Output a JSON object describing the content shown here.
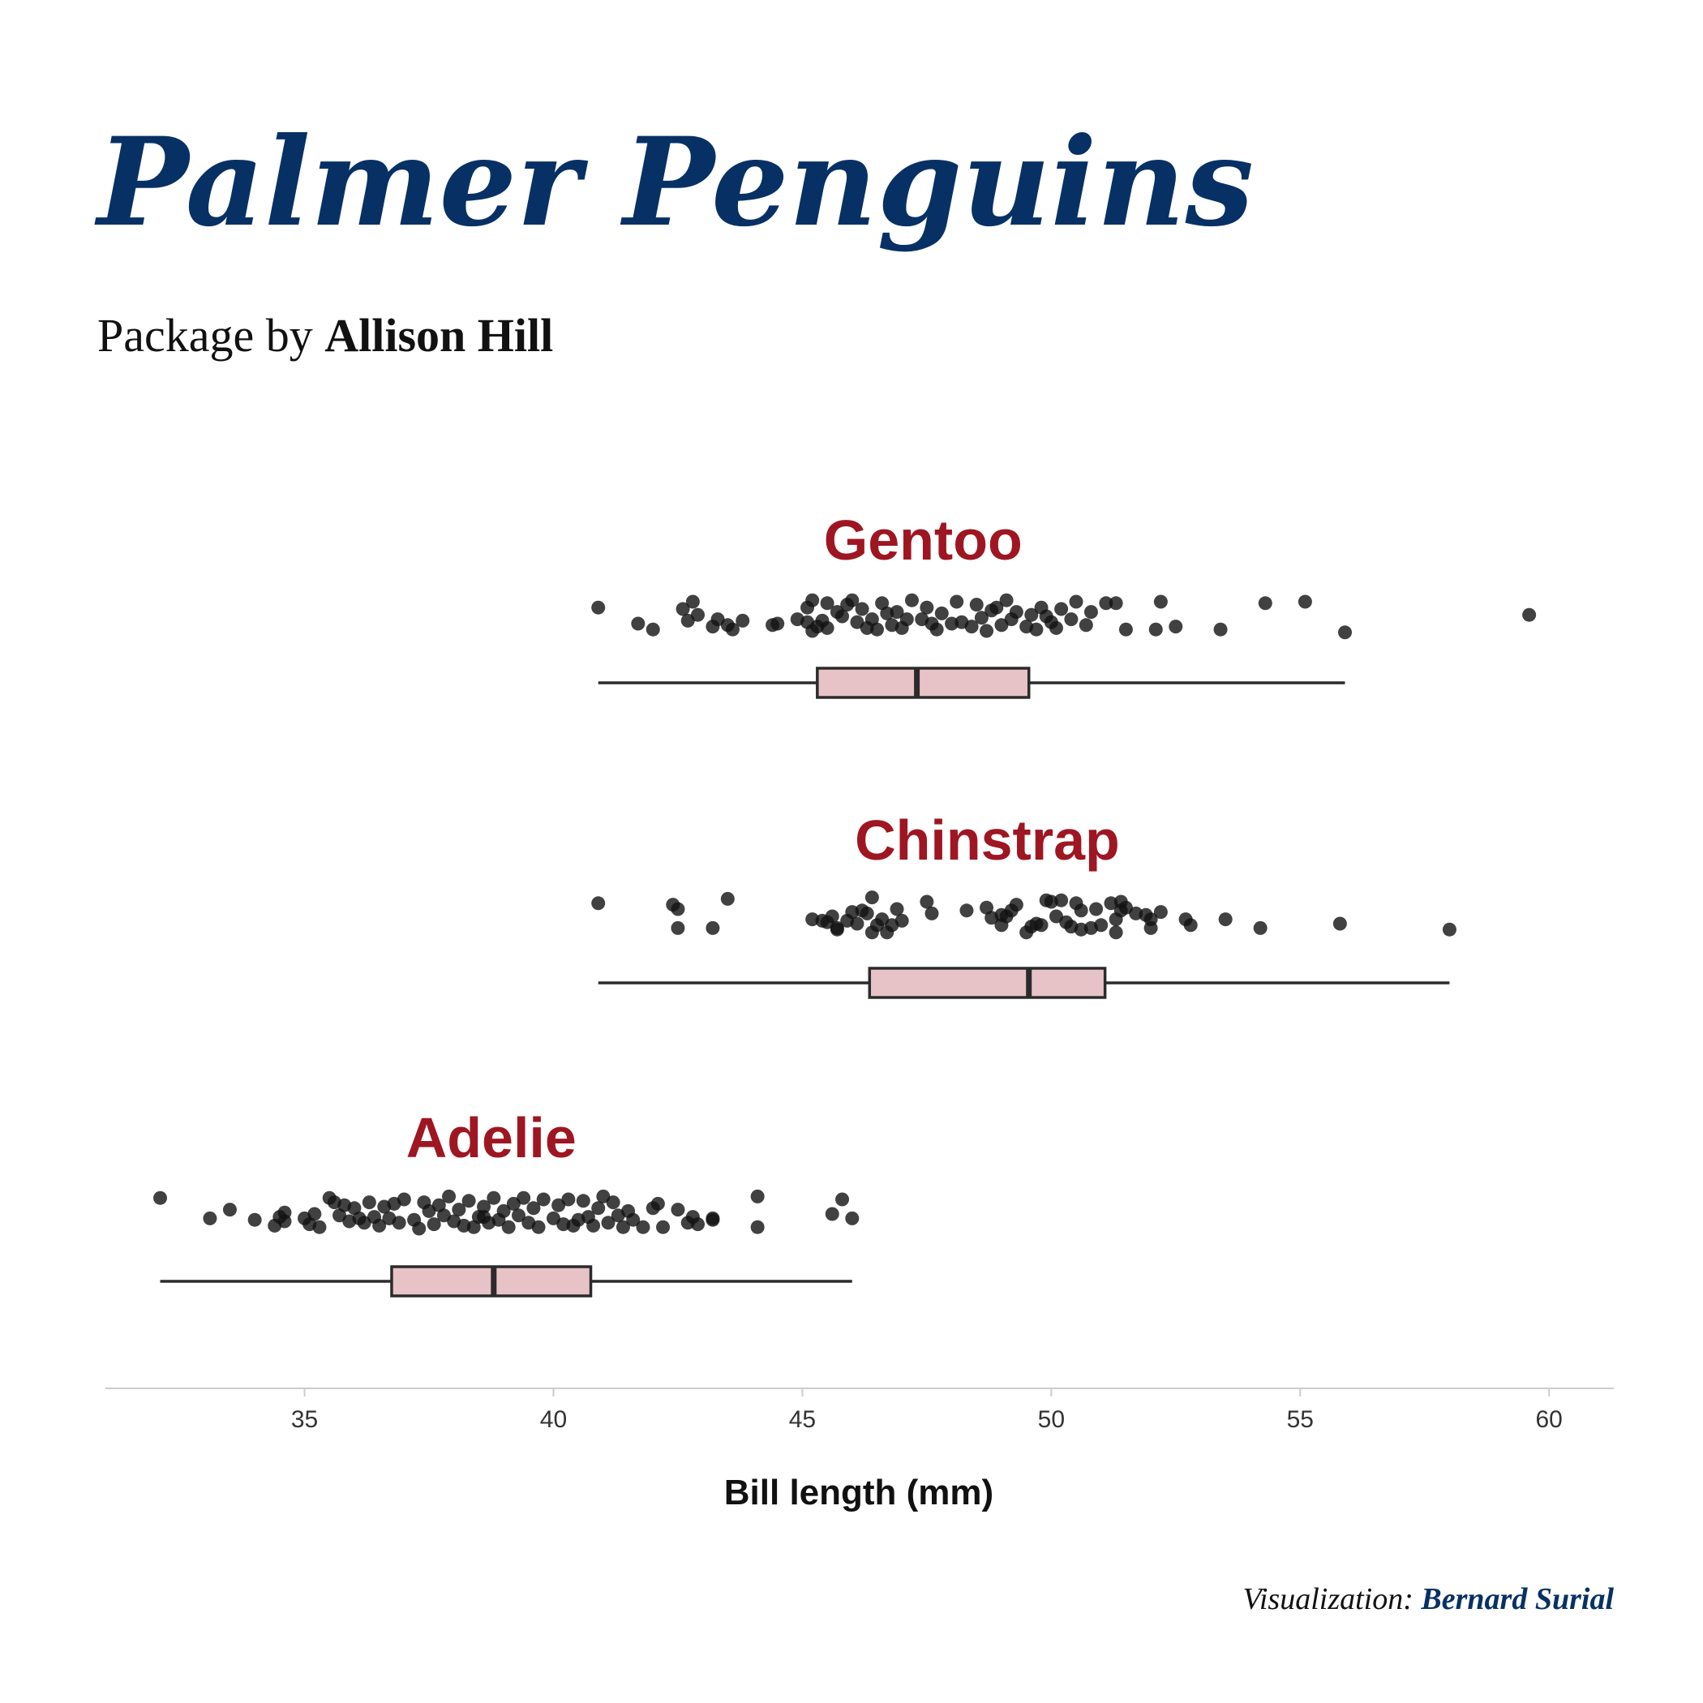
{
  "title": "Palmer Penguins",
  "subtitle": {
    "prefix": "Package by ",
    "author": "Allison Hill"
  },
  "caption": {
    "prefix": "Visualization: ",
    "credit": "Bernard Surial"
  },
  "colors": {
    "title": "#073164",
    "species_label": "#9e1622",
    "box_fill": "#e7c3c8",
    "box_stroke": "#2b2b2b",
    "points": "#111111",
    "axis_line": "#cccccc"
  },
  "chart_data": {
    "type": "boxplot",
    "title": "",
    "xlabel": "Bill length (mm)",
    "ylabel": "",
    "xlim": [
      31,
      61.3
    ],
    "xticks": [
      35,
      40,
      45,
      50,
      55,
      60
    ],
    "grid": false,
    "legend": "none",
    "series": [
      {
        "name": "Gentoo",
        "box": {
          "min": 40.9,
          "q1": 45.3,
          "median": 47.3,
          "q3": 49.55,
          "max": 55.9
        },
        "points": [
          [
            40.9,
            -0.6
          ],
          [
            41.7,
            0.5
          ],
          [
            42.0,
            0.9
          ],
          [
            42.6,
            -0.5
          ],
          [
            42.8,
            -1.0
          ],
          [
            42.7,
            0.3
          ],
          [
            43.2,
            0.7
          ],
          [
            43.3,
            0.2
          ],
          [
            43.5,
            0.6
          ],
          [
            43.6,
            0.9
          ],
          [
            42.9,
            -0.1
          ],
          [
            43.8,
            0.3
          ],
          [
            44.4,
            0.6
          ],
          [
            44.5,
            0.5
          ],
          [
            45.1,
            -0.6
          ],
          [
            45.1,
            0.4
          ],
          [
            45.2,
            1.0
          ],
          [
            45.2,
            -1.1
          ],
          [
            45.3,
            0.7
          ],
          [
            45.4,
            0.3
          ],
          [
            45.5,
            -0.9
          ],
          [
            45.5,
            0.8
          ],
          [
            45.7,
            -0.3
          ],
          [
            45.8,
            0.0
          ],
          [
            46.0,
            -1.1
          ],
          [
            46.1,
            0.4
          ],
          [
            46.2,
            -0.5
          ],
          [
            46.4,
            0.2
          ],
          [
            46.5,
            0.9
          ],
          [
            46.6,
            -0.9
          ],
          [
            46.8,
            0.6
          ],
          [
            46.9,
            -0.3
          ],
          [
            47.0,
            0.8
          ],
          [
            47.2,
            -1.1
          ],
          [
            47.4,
            0.2
          ],
          [
            47.5,
            -0.6
          ],
          [
            47.6,
            0.5
          ],
          [
            47.7,
            0.9
          ],
          [
            47.8,
            -0.2
          ],
          [
            48.1,
            -1.0
          ],
          [
            48.2,
            0.4
          ],
          [
            48.4,
            0.7
          ],
          [
            48.5,
            -0.8
          ],
          [
            48.6,
            0.1
          ],
          [
            48.7,
            1.0
          ],
          [
            48.8,
            -0.4
          ],
          [
            49.0,
            0.6
          ],
          [
            49.1,
            -1.1
          ],
          [
            49.2,
            0.2
          ],
          [
            49.3,
            -0.3
          ],
          [
            49.5,
            0.7
          ],
          [
            49.6,
            -0.1
          ],
          [
            49.7,
            0.9
          ],
          [
            49.8,
            -0.6
          ],
          [
            50.0,
            0.4
          ],
          [
            50.1,
            0.8
          ],
          [
            50.2,
            -0.5
          ],
          [
            50.4,
            0.2
          ],
          [
            50.5,
            -1.0
          ],
          [
            50.7,
            0.6
          ],
          [
            50.8,
            -0.3
          ],
          [
            51.1,
            -0.9
          ],
          [
            51.3,
            -0.9
          ],
          [
            51.5,
            0.9
          ],
          [
            52.1,
            0.9
          ],
          [
            52.2,
            -1.0
          ],
          [
            52.5,
            0.7
          ],
          [
            53.4,
            0.9
          ],
          [
            54.3,
            -0.9
          ],
          [
            55.1,
            -1.0
          ],
          [
            55.9,
            1.1
          ],
          [
            59.6,
            -0.1
          ],
          [
            46.3,
            0.8
          ],
          [
            48.0,
            0.5
          ],
          [
            44.9,
            0.2
          ],
          [
            45.9,
            -0.8
          ],
          [
            47.1,
            0.2
          ],
          [
            49.9,
            0.0
          ],
          [
            48.9,
            -0.6
          ],
          [
            46.7,
            -0.2
          ]
        ]
      },
      {
        "name": "Chinstrap",
        "box": {
          "min": 40.9,
          "q1": 46.35,
          "median": 49.55,
          "q3": 51.08,
          "max": 58.0
        },
        "points": [
          [
            40.9,
            -0.9
          ],
          [
            42.4,
            -0.8
          ],
          [
            42.5,
            0.8
          ],
          [
            42.5,
            -0.5
          ],
          [
            43.2,
            0.8
          ],
          [
            43.5,
            -1.2
          ],
          [
            45.2,
            0.2
          ],
          [
            45.4,
            0.3
          ],
          [
            45.5,
            0.4
          ],
          [
            45.6,
            0.0
          ],
          [
            45.7,
            0.9
          ],
          [
            45.7,
            0.8
          ],
          [
            45.9,
            0.3
          ],
          [
            46.0,
            -0.3
          ],
          [
            46.1,
            0.5
          ],
          [
            46.2,
            -0.4
          ],
          [
            46.4,
            1.1
          ],
          [
            46.4,
            -1.3
          ],
          [
            46.5,
            0.6
          ],
          [
            46.6,
            0.2
          ],
          [
            46.7,
            1.1
          ],
          [
            46.8,
            0.6
          ],
          [
            46.9,
            -0.5
          ],
          [
            47.5,
            -1.0
          ],
          [
            47.6,
            -0.2
          ],
          [
            48.3,
            -0.4
          ],
          [
            48.7,
            -0.6
          ],
          [
            49.0,
            0.6
          ],
          [
            49.1,
            0.0
          ],
          [
            49.3,
            -0.8
          ],
          [
            49.5,
            1.1
          ],
          [
            49.6,
            0.7
          ],
          [
            49.7,
            0.5
          ],
          [
            49.9,
            -1.1
          ],
          [
            50.2,
            -1.1
          ],
          [
            50.3,
            0.4
          ],
          [
            50.5,
            -0.9
          ],
          [
            50.6,
            0.9
          ],
          [
            50.8,
            0.8
          ],
          [
            50.9,
            -0.5
          ],
          [
            51.0,
            0.6
          ],
          [
            51.2,
            -0.9
          ],
          [
            51.3,
            1.1
          ],
          [
            51.4,
            -0.4
          ],
          [
            51.5,
            -0.6
          ],
          [
            52.0,
            0.8
          ],
          [
            52.2,
            -0.3
          ],
          [
            52.7,
            0.2
          ],
          [
            52.8,
            0.6
          ],
          [
            53.5,
            0.2
          ],
          [
            54.2,
            0.8
          ],
          [
            55.8,
            0.5
          ],
          [
            58.0,
            0.9
          ],
          [
            50.1,
            0.0
          ],
          [
            49.0,
            -0.1
          ],
          [
            51.3,
            0.2
          ],
          [
            50.4,
            0.7
          ],
          [
            52.0,
            0.2
          ],
          [
            47.0,
            0.3
          ],
          [
            51.7,
            -0.2
          ],
          [
            50.6,
            -0.4
          ],
          [
            49.8,
            0.6
          ],
          [
            51.4,
            -1.0
          ],
          [
            48.8,
            0.1
          ],
          [
            46.3,
            -0.2
          ],
          [
            50.0,
            -1.0
          ],
          [
            51.9,
            -0.1
          ],
          [
            49.2,
            -0.4
          ]
        ]
      },
      {
        "name": "Adelie",
        "box": {
          "min": 32.1,
          "q1": 36.75,
          "median": 38.8,
          "q3": 40.75,
          "max": 46.0
        },
        "points": [
          [
            32.1,
            -1.1
          ],
          [
            33.1,
            0.3
          ],
          [
            33.5,
            -0.3
          ],
          [
            34.0,
            0.4
          ],
          [
            34.4,
            0.8
          ],
          [
            34.5,
            0.2
          ],
          [
            34.6,
            0.5
          ],
          [
            34.6,
            -0.1
          ],
          [
            35.0,
            0.3
          ],
          [
            35.1,
            0.7
          ],
          [
            35.2,
            0.0
          ],
          [
            35.3,
            0.9
          ],
          [
            35.5,
            -1.1
          ],
          [
            35.6,
            -0.8
          ],
          [
            35.7,
            0.1
          ],
          [
            35.9,
            0.5
          ],
          [
            36.0,
            -0.4
          ],
          [
            36.2,
            0.6
          ],
          [
            36.3,
            -0.8
          ],
          [
            36.4,
            0.2
          ],
          [
            36.5,
            0.8
          ],
          [
            36.6,
            -0.5
          ],
          [
            36.7,
            0.3
          ],
          [
            36.8,
            -0.7
          ],
          [
            36.9,
            0.6
          ],
          [
            37.0,
            -1.0
          ],
          [
            37.2,
            0.4
          ],
          [
            37.3,
            1.0
          ],
          [
            37.5,
            -0.2
          ],
          [
            37.6,
            0.7
          ],
          [
            37.7,
            -0.6
          ],
          [
            37.8,
            0.1
          ],
          [
            37.9,
            -1.2
          ],
          [
            38.0,
            0.5
          ],
          [
            38.1,
            -0.3
          ],
          [
            38.2,
            0.8
          ],
          [
            38.3,
            -0.9
          ],
          [
            38.5,
            0.2
          ],
          [
            38.6,
            -0.5
          ],
          [
            38.7,
            0.6
          ],
          [
            38.8,
            -1.1
          ],
          [
            38.9,
            0.4
          ],
          [
            39.0,
            -0.2
          ],
          [
            39.1,
            0.9
          ],
          [
            39.2,
            -0.7
          ],
          [
            39.3,
            0.1
          ],
          [
            39.5,
            0.6
          ],
          [
            39.6,
            -0.4
          ],
          [
            39.7,
            0.9
          ],
          [
            39.8,
            -1.0
          ],
          [
            40.0,
            0.3
          ],
          [
            40.1,
            -0.6
          ],
          [
            40.2,
            0.7
          ],
          [
            40.3,
            -1.0
          ],
          [
            40.5,
            0.4
          ],
          [
            40.6,
            -0.9
          ],
          [
            40.7,
            0.2
          ],
          [
            40.8,
            0.8
          ],
          [
            40.9,
            -0.4
          ],
          [
            41.0,
            -1.2
          ],
          [
            41.1,
            0.6
          ],
          [
            41.3,
            0.1
          ],
          [
            41.4,
            0.9
          ],
          [
            41.5,
            -0.2
          ],
          [
            41.6,
            0.4
          ],
          [
            41.8,
            0.9
          ],
          [
            42.0,
            -0.4
          ],
          [
            42.1,
            -0.7
          ],
          [
            42.2,
            0.9
          ],
          [
            42.5,
            -0.3
          ],
          [
            42.7,
            0.6
          ],
          [
            42.8,
            0.2
          ],
          [
            42.9,
            0.7
          ],
          [
            43.2,
            0.4
          ],
          [
            43.2,
            0.3
          ],
          [
            44.1,
            -1.2
          ],
          [
            44.1,
            0.9
          ],
          [
            45.6,
            0.0
          ],
          [
            45.8,
            -1.0
          ],
          [
            46.0,
            0.3
          ],
          [
            39.4,
            -1.1
          ],
          [
            37.4,
            -0.8
          ],
          [
            38.4,
            0.9
          ],
          [
            36.1,
            0.3
          ],
          [
            40.4,
            0.8
          ],
          [
            41.2,
            -0.8
          ],
          [
            35.8,
            -0.6
          ],
          [
            38.6,
            0.2
          ]
        ]
      }
    ]
  }
}
